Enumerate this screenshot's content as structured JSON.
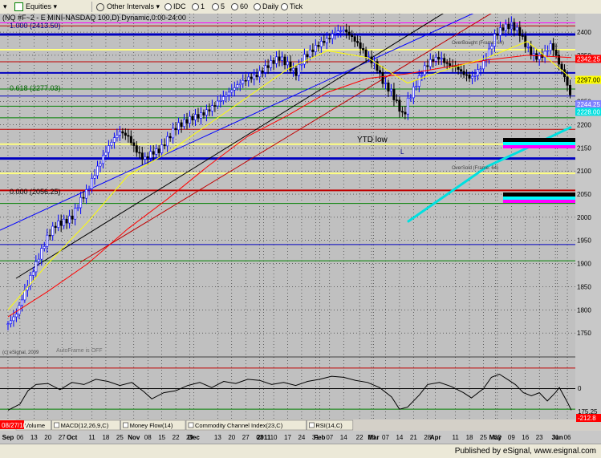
{
  "toolbar": {
    "symbol_arrow": "▾",
    "equities": "Equities",
    "other_intervals": "Other Intervals",
    "b_idc": "IDC",
    "b_1": "1",
    "b_5": "5",
    "b_60": "60",
    "b_daily": "Daily",
    "b_tick": "Tick"
  },
  "header": {
    "symbol_line": "(NQ #F~2 - E MINI-NASDAQ 100,D) Dynamic,0:00-24:00",
    "fib_1000": "1.000 (2413.50)",
    "fib_0618": "0.618 (2277.03)",
    "fib_0000": "0.000 (2056.25)",
    "copyright": "(c) eSignal, 2009",
    "autoframe": "AutoFrame is OFF"
  },
  "annotations": {
    "ytd_low": "YTD low",
    "overbought": "OverBought (Frame: 64)",
    "oversold": "OverSold (Frame: 64)",
    "head": "H",
    "low": "L"
  },
  "colors": {
    "bg": "#c0c0c0",
    "up_bar": "#0000ff",
    "down_bar": "#000000",
    "cyan": "#00e0e0",
    "magenta": "#ff00ff",
    "grid_red": "#c00000",
    "grid_yellow": "#ffff80",
    "grid_green": "#008000",
    "grid_blue": "#0000c0"
  },
  "indicator_tabs": [
    "Volume",
    "MACD(12,26,9,C)",
    "Money Flow(14)",
    "Commodity Channel Index(23,C)",
    "RSI(14,C)"
  ],
  "statusbar": {
    "published": "Published by eSignal, www.esignal.com",
    "date_tag": "08/27/10"
  },
  "chart_data": [
    {
      "type": "candlestick",
      "title": "(NQ #F~2 - E MINI-NASDAQ 100,D) Dynamic,0:00-24:00",
      "ylim": [
        1700,
        2440
      ],
      "y_ticks": [
        1750,
        1800,
        1850,
        1900,
        1950,
        2000,
        2050,
        2100,
        2150,
        2200,
        2250,
        2300,
        2350,
        2400
      ],
      "x_labels": [
        {
          "label": "Sep",
          "day": 0
        },
        {
          "label": "06",
          "day": 6
        },
        {
          "label": "13",
          "day": 13
        },
        {
          "label": "20",
          "day": 20
        },
        {
          "label": "27",
          "day": 27
        },
        {
          "label": "Oct",
          "day": 32
        },
        {
          "label": "11",
          "day": 42
        },
        {
          "label": "18",
          "day": 49
        },
        {
          "label": "25",
          "day": 56
        },
        {
          "label": "Nov",
          "day": 63
        },
        {
          "label": "08",
          "day": 70
        },
        {
          "label": "15",
          "day": 77
        },
        {
          "label": "22",
          "day": 84
        },
        {
          "label": "29",
          "day": 91
        },
        {
          "label": "Dec",
          "day": 93
        },
        {
          "label": "13",
          "day": 105
        },
        {
          "label": "20",
          "day": 112
        },
        {
          "label": "27",
          "day": 119
        },
        {
          "label": "03",
          "day": 126
        },
        {
          "label": "2011",
          "day": 128
        },
        {
          "label": "10",
          "day": 133
        },
        {
          "label": "17",
          "day": 140
        },
        {
          "label": "24",
          "day": 147
        },
        {
          "label": "31",
          "day": 154
        },
        {
          "label": "Feb",
          "day": 156
        },
        {
          "label": "07",
          "day": 161
        },
        {
          "label": "14",
          "day": 168
        },
        {
          "label": "22",
          "day": 176
        },
        {
          "label": "28",
          "day": 182
        },
        {
          "label": "Mar",
          "day": 183
        },
        {
          "label": "07",
          "day": 189
        },
        {
          "label": "14",
          "day": 196
        },
        {
          "label": "21",
          "day": 203
        },
        {
          "label": "28",
          "day": 210
        },
        {
          "label": "Apr",
          "day": 214
        },
        {
          "label": "11",
          "day": 224
        },
        {
          "label": "18",
          "day": 231
        },
        {
          "label": "25",
          "day": 238
        },
        {
          "label": "02",
          "day": 245
        },
        {
          "label": "May",
          "day": 244
        },
        {
          "label": "09",
          "day": 252
        },
        {
          "label": "16",
          "day": 259
        },
        {
          "label": "23",
          "day": 266
        },
        {
          "label": "31",
          "day": 274
        },
        {
          "label": "Jun",
          "day": 275
        },
        {
          "label": "06",
          "day": 280
        }
      ],
      "x_range_days": [
        -4,
        284
      ],
      "price_tags": [
        {
          "value": 2342.25,
          "label": "2342.25",
          "color": "#ff0000"
        },
        {
          "value": 2297.0,
          "label": "2297.00",
          "color": "#ffff00"
        },
        {
          "value": 2244.25,
          "label": "2244.25",
          "color": "#8080ff"
        },
        {
          "value": 2228.0,
          "label": "2228.00",
          "color": "#00e0e0"
        }
      ],
      "horizontal_levels": [
        {
          "value": 2420,
          "color": "#ff00ff",
          "width": 1
        },
        {
          "value": 2413.5,
          "color": "#c00000",
          "width": 1
        },
        {
          "value": 2395,
          "color": "#0000c0",
          "width": 3
        },
        {
          "value": 2362,
          "color": "#ffff80",
          "width": 2
        },
        {
          "value": 2336,
          "color": "#c00000",
          "width": 1
        },
        {
          "value": 2312,
          "color": "#0000c0",
          "width": 2
        },
        {
          "value": 2277,
          "color": "#008000",
          "width": 1
        },
        {
          "value": 2262,
          "color": "#0000c0",
          "width": 1
        },
        {
          "value": 2240,
          "color": "#008000",
          "width": 1
        },
        {
          "value": 2215,
          "color": "#008000",
          "width": 1
        },
        {
          "value": 2190,
          "color": "#c00000",
          "width": 1
        },
        {
          "value": 2158,
          "color": "#ffff80",
          "width": 2
        },
        {
          "value": 2127,
          "color": "#0000c0",
          "width": 3
        },
        {
          "value": 2095,
          "color": "#ffff80",
          "width": 2
        },
        {
          "value": 2058,
          "color": "#c00000",
          "width": 2
        },
        {
          "value": 2030,
          "color": "#008000",
          "width": 1
        },
        {
          "value": 1941,
          "color": "#0000c0",
          "width": 1
        },
        {
          "value": 1906,
          "color": "#008000",
          "width": 1
        }
      ],
      "price_path": [
        [
          0,
          1770
        ],
        [
          4,
          1790
        ],
        [
          8,
          1835
        ],
        [
          12,
          1880
        ],
        [
          16,
          1920
        ],
        [
          20,
          1960
        ],
        [
          24,
          1985
        ],
        [
          28,
          1990
        ],
        [
          32,
          2000
        ],
        [
          36,
          2035
        ],
        [
          40,
          2060
        ],
        [
          44,
          2100
        ],
        [
          48,
          2135
        ],
        [
          52,
          2165
        ],
        [
          56,
          2185
        ],
        [
          60,
          2175
        ],
        [
          64,
          2145
        ],
        [
          68,
          2125
        ],
        [
          72,
          2140
        ],
        [
          76,
          2145
        ],
        [
          80,
          2170
        ],
        [
          84,
          2195
        ],
        [
          88,
          2205
        ],
        [
          92,
          2215
        ],
        [
          96,
          2220
        ],
        [
          100,
          2230
        ],
        [
          104,
          2245
        ],
        [
          108,
          2260
        ],
        [
          112,
          2275
        ],
        [
          116,
          2290
        ],
        [
          120,
          2300
        ],
        [
          124,
          2305
        ],
        [
          128,
          2320
        ],
        [
          132,
          2335
        ],
        [
          136,
          2345
        ],
        [
          140,
          2330
        ],
        [
          144,
          2310
        ],
        [
          148,
          2345
        ],
        [
          152,
          2360
        ],
        [
          156,
          2375
        ],
        [
          160,
          2385
        ],
        [
          164,
          2400
        ],
        [
          168,
          2405
        ],
        [
          172,
          2390
        ],
        [
          176,
          2370
        ],
        [
          180,
          2345
        ],
        [
          184,
          2330
        ],
        [
          188,
          2290
        ],
        [
          192,
          2270
        ],
        [
          196,
          2235
        ],
        [
          198,
          2215
        ],
        [
          200,
          2250
        ],
        [
          204,
          2285
        ],
        [
          208,
          2320
        ],
        [
          212,
          2340
        ],
        [
          216,
          2345
        ],
        [
          220,
          2330
        ],
        [
          224,
          2325
        ],
        [
          228,
          2310
        ],
        [
          232,
          2300
        ],
        [
          236,
          2320
        ],
        [
          240,
          2350
        ],
        [
          244,
          2395
        ],
        [
          248,
          2410
        ],
        [
          252,
          2415
        ],
        [
          256,
          2400
        ],
        [
          260,
          2365
        ],
        [
          264,
          2345
        ],
        [
          268,
          2350
        ],
        [
          272,
          2375
        ],
        [
          276,
          2330
        ],
        [
          279,
          2300
        ],
        [
          282,
          2255
        ]
      ],
      "ma_red": [
        [
          0,
          1785
        ],
        [
          20,
          1840
        ],
        [
          40,
          1900
        ],
        [
          60,
          1975
        ],
        [
          80,
          2040
        ],
        [
          100,
          2110
        ],
        [
          120,
          2175
        ],
        [
          140,
          2220
        ],
        [
          160,
          2270
        ],
        [
          180,
          2300
        ],
        [
          200,
          2310
        ],
        [
          220,
          2325
        ],
        [
          240,
          2340
        ],
        [
          260,
          2350
        ],
        [
          282,
          2345
        ]
      ],
      "ma_yellow": [
        [
          0,
          1800
        ],
        [
          20,
          1900
        ],
        [
          40,
          1990
        ],
        [
          60,
          2090
        ],
        [
          80,
          2140
        ],
        [
          100,
          2200
        ],
        [
          120,
          2260
        ],
        [
          140,
          2320
        ],
        [
          160,
          2360
        ],
        [
          180,
          2345
        ],
        [
          200,
          2290
        ],
        [
          220,
          2320
        ],
        [
          240,
          2345
        ],
        [
          260,
          2380
        ],
        [
          282,
          2300
        ]
      ],
      "ma_cyan": [
        [
          200,
          1990
        ],
        [
          220,
          2050
        ],
        [
          240,
          2110
        ],
        [
          260,
          2150
        ],
        [
          282,
          2195
        ]
      ]
    },
    {
      "type": "line",
      "title": "",
      "ylim": [
        -300,
        300
      ],
      "y_ticks": [
        0
      ],
      "series": [
        {
          "values": [
            [
              0,
              -210
            ],
            [
              6,
              -150
            ],
            [
              10,
              -20
            ],
            [
              14,
              40
            ],
            [
              20,
              50
            ],
            [
              26,
              -10
            ],
            [
              32,
              60
            ],
            [
              38,
              40
            ],
            [
              44,
              90
            ],
            [
              50,
              70
            ],
            [
              56,
              30
            ],
            [
              62,
              60
            ],
            [
              68,
              -30
            ],
            [
              72,
              -100
            ],
            [
              78,
              -40
            ],
            [
              84,
              -20
            ],
            [
              90,
              30
            ],
            [
              96,
              60
            ],
            [
              102,
              10
            ],
            [
              108,
              70
            ],
            [
              114,
              50
            ],
            [
              120,
              90
            ],
            [
              126,
              80
            ],
            [
              132,
              40
            ],
            [
              138,
              60
            ],
            [
              144,
              30
            ],
            [
              150,
              70
            ],
            [
              156,
              90
            ],
            [
              162,
              120
            ],
            [
              168,
              110
            ],
            [
              174,
              80
            ],
            [
              180,
              60
            ],
            [
              186,
              10
            ],
            [
              192,
              -80
            ],
            [
              196,
              -200
            ],
            [
              200,
              -180
            ],
            [
              206,
              -60
            ],
            [
              210,
              40
            ],
            [
              216,
              60
            ],
            [
              222,
              20
            ],
            [
              228,
              -40
            ],
            [
              232,
              -90
            ],
            [
              238,
              0
            ],
            [
              242,
              110
            ],
            [
              246,
              140
            ],
            [
              250,
              90
            ],
            [
              254,
              40
            ],
            [
              258,
              -40
            ],
            [
              262,
              -70
            ],
            [
              266,
              -40
            ],
            [
              270,
              -120
            ],
            [
              274,
              -40
            ],
            [
              276,
              10
            ],
            [
              280,
              -130
            ],
            [
              282,
              -210
            ]
          ]
        }
      ],
      "last_value": "-212.8",
      "alt_value": "175.25"
    }
  ]
}
